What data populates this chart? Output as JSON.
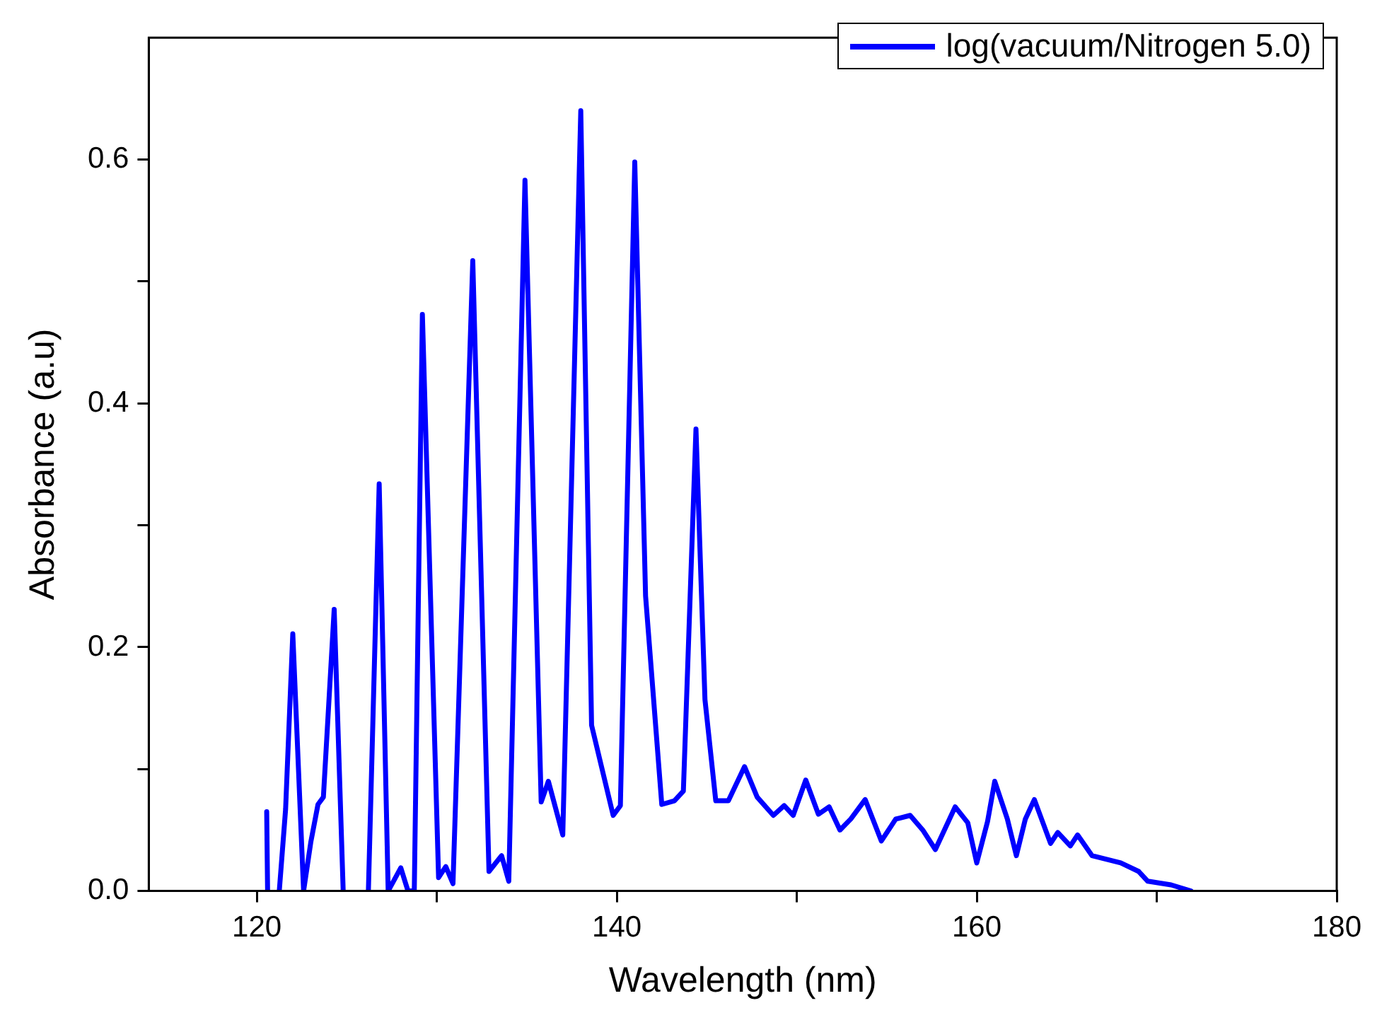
{
  "chart_data": {
    "type": "line",
    "xlabel": "Wavelength (nm)",
    "ylabel": "Absorbance (a.u)",
    "xlim": [
      114,
      180
    ],
    "xticks": [
      120,
      {
        "value": 130,
        "label": null
      },
      140,
      {
        "value": 150,
        "label": null
      },
      160,
      {
        "value": 170,
        "label": null
      },
      180
    ],
    "ylim": [
      0,
      0.7
    ],
    "yticks": [
      {
        "value": 0,
        "label": "0.0"
      },
      {
        "value": 0.1,
        "label": null
      },
      {
        "value": 0.2,
        "label": "0.2"
      },
      {
        "value": 0.3,
        "label": null
      },
      {
        "value": 0.4,
        "label": "0.4"
      },
      {
        "value": 0.5,
        "label": null
      },
      {
        "value": 0.6,
        "label": "0.6"
      }
    ],
    "grid": false,
    "legend": "top right",
    "marker": "none",
    "line_style": "solid",
    "series": [
      {
        "name": "log(vacuum/Nitrogen 5.0)",
        "color": "#0000ff",
        "x": [
          120.55,
          120.6,
          121,
          121.25,
          121.6,
          122.0,
          122.6,
          123.0,
          123.4,
          123.7,
          124.3,
          124.8,
          125.5,
          126.2,
          126.8,
          127.3,
          128.0,
          128.4,
          128.75,
          129.2,
          130.1,
          130.5,
          130.9,
          132.0,
          132.9,
          133.6,
          134.0,
          134.9,
          135.8,
          136.2,
          137.0,
          138.0,
          138.6,
          139.8,
          140.2,
          141.0,
          141.6,
          142.5,
          143.2,
          143.7,
          144.4,
          144.9,
          145.5,
          146.2,
          147.1,
          147.8,
          148.7,
          149.3,
          149.8,
          150.5,
          151.2,
          151.8,
          152.4,
          153.0,
          153.8,
          154.7,
          155.5,
          156.3,
          157.0,
          157.7,
          158.8,
          159.5,
          160.0,
          160.6,
          161.0,
          161.7,
          162.2,
          162.7,
          163.2,
          164.1,
          164.5,
          165.2,
          165.6,
          166.4,
          168.0,
          169.0,
          169.5,
          170.8,
          171.9
        ],
        "values": [
          0.065,
          0,
          null,
          0,
          0.067,
          0.211,
          0,
          0.04,
          0.071,
          0.077,
          0.231,
          0,
          null,
          0,
          0.334,
          0,
          0.019,
          0,
          0,
          0.473,
          0.011,
          0.02,
          0.006,
          0.517,
          0.016,
          0.029,
          0.008,
          0.583,
          0.073,
          0.09,
          0.046,
          0.64,
          0.136,
          0.062,
          0.07,
          0.598,
          0.242,
          0.071,
          0.074,
          0.082,
          0.379,
          0.157,
          0.074,
          0.074,
          0.102,
          0.077,
          0.062,
          0.07,
          0.062,
          0.091,
          0.063,
          0.069,
          0.05,
          0.059,
          0.075,
          0.041,
          0.059,
          0.062,
          0.05,
          0.034,
          0.069,
          0.056,
          0.023,
          0.057,
          0.09,
          0.059,
          0.029,
          0.059,
          0.075,
          0.039,
          0.048,
          0.037,
          0.046,
          0.029,
          0.023,
          0.016,
          0.008,
          0.005,
          0
        ]
      }
    ]
  }
}
